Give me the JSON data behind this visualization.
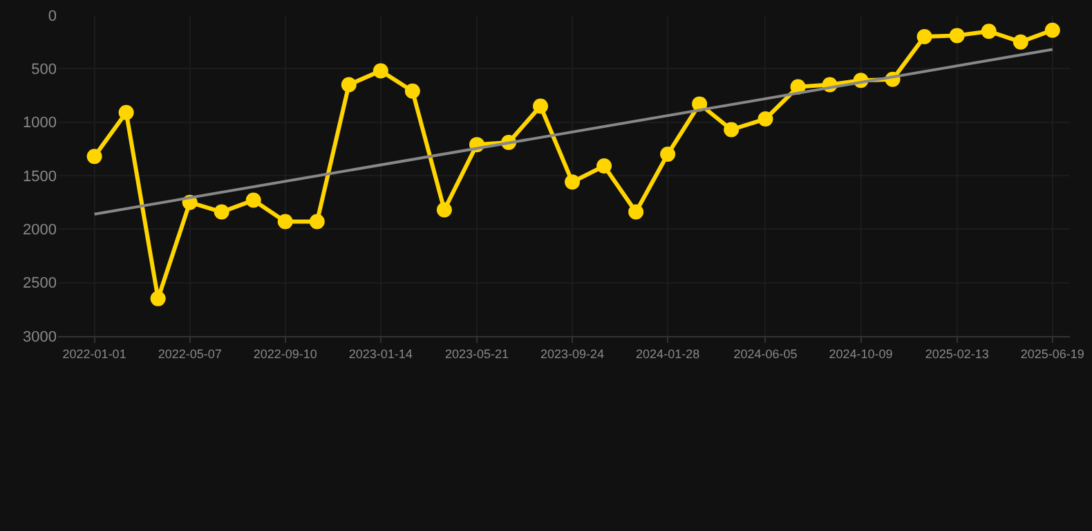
{
  "chart_data": {
    "type": "line",
    "x": [
      "2022-01-01",
      "2022-02-12",
      "2022-03-26",
      "2022-05-07",
      "2022-06-18",
      "2022-07-30",
      "2022-09-10",
      "2022-10-22",
      "2022-12-03",
      "2023-01-14",
      "2023-02-25",
      "2023-04-08",
      "2023-05-21",
      "2023-07-02",
      "2023-08-13",
      "2023-09-24",
      "2023-11-05",
      "2023-12-17",
      "2024-01-28",
      "2024-03-10",
      "2024-04-21",
      "2024-06-05",
      "2024-07-18",
      "2024-08-29",
      "2024-10-09",
      "2024-11-20",
      "2025-01-01",
      "2025-02-13",
      "2025-03-27",
      "2025-05-08",
      "2025-06-19"
    ],
    "series": [
      {
        "color": "#ffd500",
        "marker": "circle",
        "values": [
          1320,
          910,
          2650,
          1750,
          1840,
          1730,
          1930,
          1930,
          650,
          520,
          710,
          1820,
          1210,
          1190,
          850,
          1560,
          1410,
          1840,
          1300,
          830,
          1070,
          970,
          670,
          650,
          610,
          600,
          200,
          190,
          150,
          250,
          140
        ]
      },
      {
        "type": "line",
        "color": "#888888",
        "marker": "none",
        "x": [
          "2022-01-01",
          "2025-06-19"
        ],
        "values": [
          1860,
          320
        ]
      }
    ],
    "xlim": [
      "2021-11-14",
      "2025-07-12"
    ],
    "xticks": [
      "2022-01-01",
      "2022-05-07",
      "2022-09-10",
      "2023-01-14",
      "2023-05-21",
      "2023-09-24",
      "2024-01-28",
      "2024-06-05",
      "2024-10-09",
      "2025-02-13",
      "2025-06-19"
    ],
    "ylim": [
      3000,
      0
    ],
    "yticks": [
      0,
      500,
      1000,
      1500,
      2000,
      2500,
      3000
    ],
    "grid": true
  }
}
